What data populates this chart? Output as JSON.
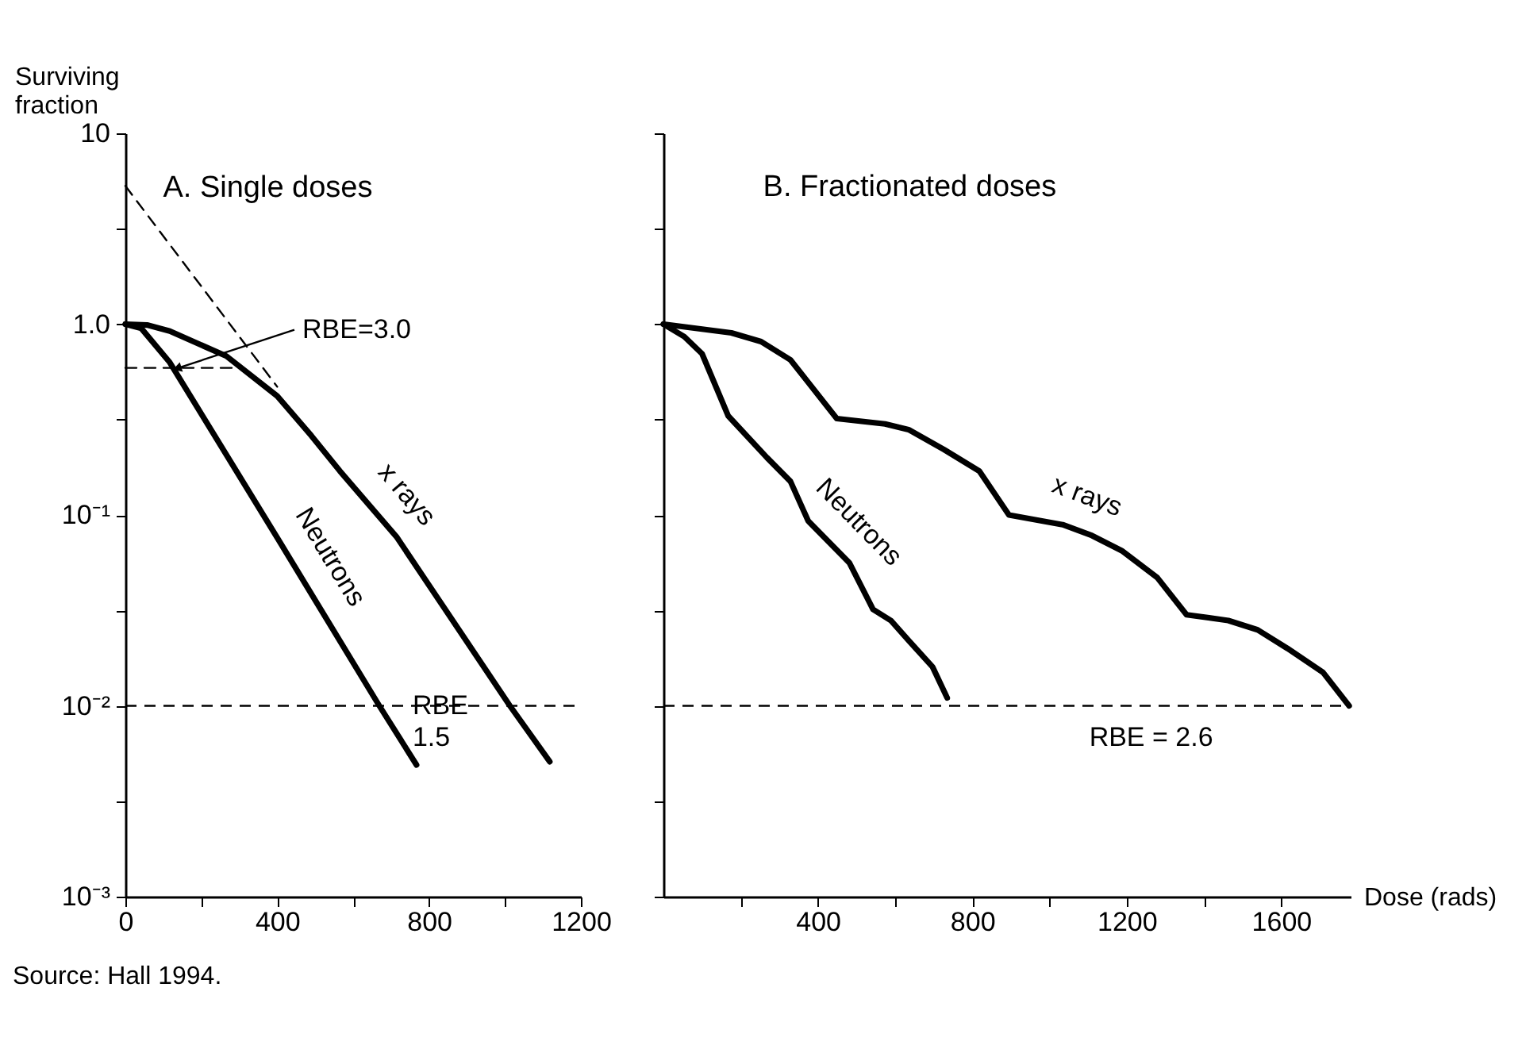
{
  "chart_data": [
    {
      "type": "line",
      "title": "A. Single doses",
      "ylabel": "Surviving fraction",
      "log": "y",
      "xlim": [
        0,
        1200
      ],
      "xticks": [
        0,
        {
          "value": 200,
          "label": null
        },
        400,
        {
          "value": 600,
          "label": null
        },
        800,
        {
          "value": 1000,
          "label": null
        },
        1200
      ],
      "ylim": [
        0.001,
        10
      ],
      "yticks": [
        10,
        {
          "value": 3.162,
          "label": null
        },
        {
          "value": 1,
          "label": "1.0"
        },
        {
          "value": 0.3162,
          "label": null
        },
        {
          "value": 0.1,
          "label": "10⁻¹"
        },
        {
          "value": 0.03162,
          "label": null
        },
        {
          "value": 0.01,
          "label": "10⁻²"
        },
        {
          "value": 0.003162,
          "label": null
        },
        {
          "value": 0.001,
          "label": "10⁻³"
        }
      ],
      "series": [
        {
          "name": "x rays",
          "color": "#000000",
          "x": [
            0,
            57,
            117,
            266,
            400,
            490,
            565,
            714,
            1013,
            1118
          ],
          "values": [
            1,
            0.99,
            0.92,
            0.68,
            0.42,
            0.26,
            0.17,
            0.077,
            0.01,
            0.0051
          ]
        },
        {
          "name": "Neutrons",
          "color": "#000000",
          "x": [
            0,
            42,
            117,
            400,
            669,
            767
          ],
          "values": [
            1,
            0.95,
            0.63,
            0.076,
            0.01,
            0.0049
          ]
        },
        {
          "color": "#000000",
          "line_style": "dashed",
          "x": [
            0,
            400
          ],
          "values": [
            5.3,
            0.47
          ]
        },
        {
          "color": "#000000",
          "line_style": "dashed",
          "x": [
            0,
            296
          ],
          "values": [
            0.59,
            0.59
          ]
        }
      ],
      "ref_lines": [
        {
          "axis": "y",
          "value": 0.01,
          "line_style": "dashed",
          "color": "#000000"
        }
      ],
      "annotations": [
        {
          "text": "RBE=3.0",
          "x": 140,
          "y": 0.59
        },
        {
          "text": "RBE 1.5",
          "x": 765,
          "y": 0.01
        },
        "Source: Hall 1994."
      ]
    },
    {
      "type": "line",
      "title": "B. Fractionated doses",
      "xlabel": "Dose (rads)",
      "log": "y",
      "tick_labels": "x",
      "xlim": [
        0,
        1780
      ],
      "xticks": [
        {
          "value": 200,
          "label": null
        },
        400,
        {
          "value": 600,
          "label": null
        },
        800,
        {
          "value": 1000,
          "label": null
        },
        1200,
        {
          "value": 1400,
          "label": null
        },
        1600
      ],
      "ylim": [
        0.001,
        10
      ],
      "yticks": [
        10,
        {
          "value": 3.162,
          "label": null
        },
        1,
        {
          "value": 0.3162,
          "label": null
        },
        0.1,
        {
          "value": 0.03162,
          "label": null
        },
        0.01,
        {
          "value": 0.003162,
          "label": null
        },
        0.001
      ],
      "series": [
        {
          "name": "x rays",
          "color": "#000000",
          "x": [
            0,
            176,
            253,
            329,
            449,
            574,
            635,
            727,
            818,
            895,
            1034,
            1110,
            1187,
            1279,
            1355,
            1463,
            1539,
            1616,
            1708,
            1776
          ],
          "values": [
            1,
            0.9,
            0.81,
            0.65,
            0.32,
            0.3,
            0.28,
            0.22,
            0.17,
            0.1,
            0.089,
            0.078,
            0.065,
            0.047,
            0.03,
            0.028,
            0.025,
            0.02,
            0.015,
            0.01
          ]
        },
        {
          "name": "Neutrons",
          "color": "#000000",
          "x": [
            0,
            54,
            100,
            168,
            268,
            329,
            375,
            482,
            543,
            589,
            635,
            697,
            735
          ],
          "values": [
            1,
            0.86,
            0.7,
            0.33,
            0.2,
            0.15,
            0.093,
            0.056,
            0.032,
            0.028,
            0.022,
            0.016,
            0.011
          ]
        }
      ],
      "ref_lines": [
        {
          "axis": "y",
          "value": 0.01,
          "line_style": "dashed",
          "color": "#000000"
        }
      ],
      "annotations": [
        {
          "text": "RBE = 2.6",
          "x": 1103,
          "y": 0.01
        }
      ]
    }
  ]
}
